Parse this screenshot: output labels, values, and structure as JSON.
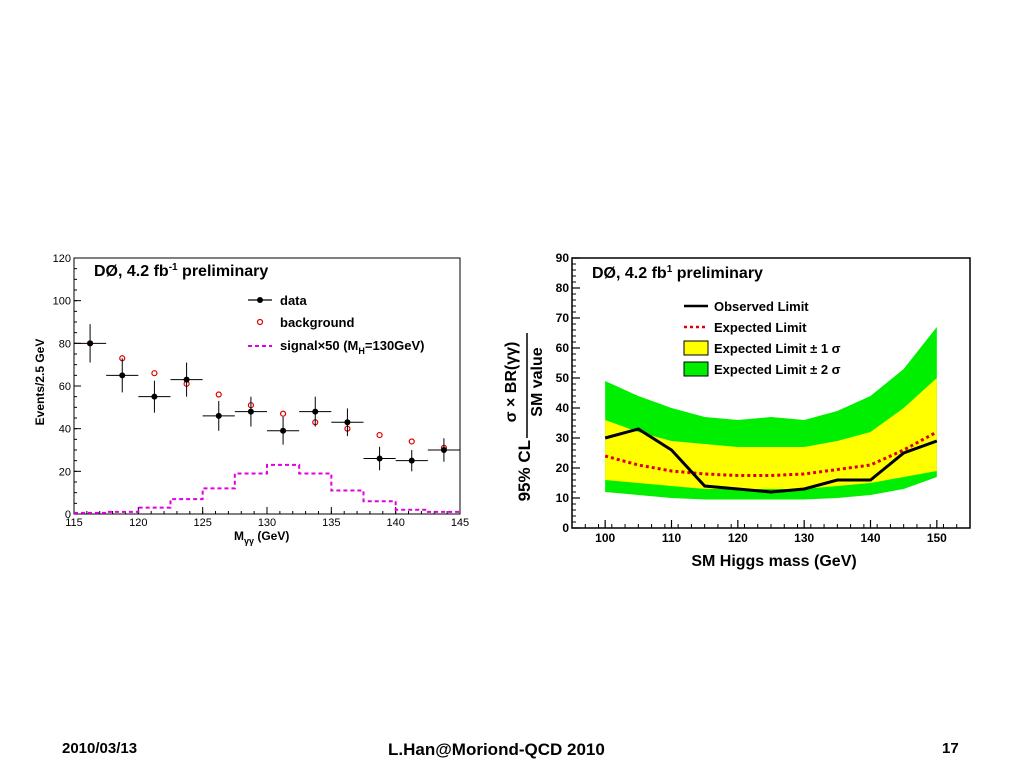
{
  "footer": {
    "date": "2010/03/13",
    "center": "L.Han@Moriond-QCD 2010",
    "page": "17"
  },
  "colors": {
    "signal": "#e000e0",
    "background_marker": "#dd0000",
    "observed": "#000000",
    "expected": "#dd0000",
    "band1": "#ffff00",
    "band2": "#00ee00"
  },
  "chart_data": [
    {
      "type": "scatter",
      "title": "DØ, 4.2 fb",
      "title_sup": "-1",
      "title_suffix": " preliminary",
      "xlabel": "M",
      "xlabel_sub": "γγ",
      "xlabel_suffix": " (GeV)",
      "ylabel": "Events/2.5 GeV",
      "xlim": [
        115,
        145
      ],
      "ylim": [
        0,
        120
      ],
      "xticks": [
        115,
        120,
        125,
        130,
        135,
        140,
        145
      ],
      "yticks": [
        0,
        20,
        40,
        60,
        80,
        100,
        120
      ],
      "legend": {
        "position": "top-right",
        "data": "data",
        "background": "background",
        "signal_prefix": "signal×50 (M",
        "signal_sub": "H",
        "signal_suffix": "=130GeV)"
      },
      "series": [
        {
          "name": "data",
          "x": [
            116.25,
            118.75,
            121.25,
            123.75,
            126.25,
            128.75,
            131.25,
            133.75,
            136.25,
            138.75,
            141.25,
            143.75
          ],
          "y": [
            80,
            65,
            55,
            63,
            46,
            48,
            39,
            48,
            43,
            26,
            25,
            30
          ],
          "yerr": [
            9,
            8,
            7.5,
            8,
            7,
            7,
            6.5,
            7,
            6.5,
            5.5,
            5,
            5.5
          ]
        },
        {
          "name": "background",
          "x": [
            116.25,
            118.75,
            121.25,
            123.75,
            126.25,
            128.75,
            131.25,
            133.75,
            136.25,
            138.75,
            141.25,
            143.75
          ],
          "y": [
            80,
            73,
            66,
            61,
            56,
            51,
            47,
            43,
            40,
            37,
            34,
            31
          ]
        },
        {
          "name": "signal×50",
          "bin_edges": [
            115,
            117.5,
            120,
            122.5,
            125,
            127.5,
            130,
            132.5,
            135,
            137.5,
            140,
            142.5,
            145
          ],
          "values": [
            0.5,
            1,
            3,
            7,
            12,
            19,
            23,
            19,
            11,
            6,
            2,
            1
          ]
        }
      ]
    },
    {
      "type": "line",
      "title": "DØ, 4.2 fb",
      "title_sup": "1",
      "title_suffix": " preliminary",
      "xlabel": "SM Higgs mass (GeV)",
      "ylabel_top": "σ × BR(γγ)",
      "ylabel_prefix": "95% CL",
      "ylabel_bottom": "SM value",
      "xlim": [
        95,
        155
      ],
      "ylim": [
        0,
        90
      ],
      "xticks": [
        100,
        110,
        120,
        130,
        140,
        150
      ],
      "yticks": [
        0,
        10,
        20,
        30,
        40,
        50,
        60,
        70,
        80,
        90
      ],
      "legend": {
        "position": "top-right",
        "observed": "Observed Limit",
        "expected": "Expected Limit",
        "band1": "Expected Limit ± 1 σ",
        "band2": "Expected Limit ± 2 σ"
      },
      "x": [
        100,
        105,
        110,
        115,
        120,
        125,
        130,
        135,
        140,
        145,
        150
      ],
      "observed": [
        30,
        33,
        26,
        14,
        13,
        12,
        13,
        16,
        16,
        25,
        29
      ],
      "expected": [
        24,
        21,
        19,
        18,
        17.5,
        17.5,
        18,
        19.5,
        21,
        26,
        32
      ],
      "band1_low": [
        16,
        15,
        14,
        13,
        13,
        13,
        13,
        14,
        15,
        17,
        19
      ],
      "band1_high": [
        36,
        32,
        29,
        28,
        27,
        27,
        27,
        29,
        32,
        40,
        50
      ],
      "band2_low": [
        12,
        11,
        10,
        9.5,
        9.5,
        9.5,
        9.5,
        10,
        11,
        13,
        17
      ],
      "band2_high": [
        49,
        44,
        40,
        37,
        36,
        37,
        36,
        39,
        44,
        53,
        67
      ]
    }
  ]
}
